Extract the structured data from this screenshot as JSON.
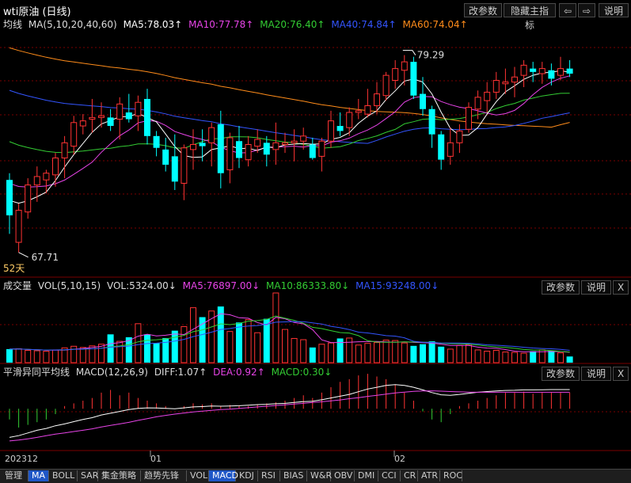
{
  "header": {
    "title": "wti原油 (日线)",
    "buttons": [
      "改参数",
      "隐藏主指标",
      "⇦",
      "⇨",
      "说明"
    ]
  },
  "main_legend": {
    "label": "均线",
    "params": "MA(5,10,20,40,60)",
    "items": [
      {
        "text": "MA5:78.03↑",
        "color": "#ffffff"
      },
      {
        "text": "MA10:77.78↑",
        "color": "#e844e8"
      },
      {
        "text": "MA20:76.40↑",
        "color": "#33cc33"
      },
      {
        "text": "MA40:74.84↑",
        "color": "#3355ff"
      },
      {
        "text": "MA60:74.04↑",
        "color": "#ff8c1a"
      }
    ]
  },
  "vol_legend": {
    "label": "成交量",
    "items": [
      {
        "text": "VOL(5,10,15)",
        "color": "#dddddd"
      },
      {
        "text": "VOL:5324.00↓",
        "color": "#dddddd"
      },
      {
        "text": "MA5:76897.00↓",
        "color": "#e844e8"
      },
      {
        "text": "MA10:86333.80↓",
        "color": "#33cc33"
      },
      {
        "text": "MA15:93248.00↓",
        "color": "#3355ff"
      }
    ],
    "buttons": [
      "改参数",
      "说明",
      "X"
    ]
  },
  "macd_legend": {
    "label": "平滑异同平均线",
    "items": [
      {
        "text": "MACD(12,26,9)",
        "color": "#dddddd"
      },
      {
        "text": "DIFF:1.07↑",
        "color": "#dddddd"
      },
      {
        "text": "DEA:0.92↑",
        "color": "#e844e8"
      },
      {
        "text": "MACD:0.30↓",
        "color": "#33cc33"
      }
    ],
    "buttons": [
      "改参数",
      "说明",
      "X"
    ]
  },
  "annotations": {
    "high_label": "79.29",
    "low_label": "67.71",
    "days_label": "52天"
  },
  "x_axis": [
    "202312",
    "01",
    "02"
  ],
  "tabs": [
    "管理",
    "MA",
    "BOLL",
    "SAR",
    "集金策略",
    "趋势先锋",
    "VOL",
    "MACD",
    "KDJ",
    "RSI",
    "BIAS",
    "W&R",
    "OBV",
    "DMI",
    "CCI",
    "CR",
    "ATR",
    "ROC"
  ],
  "active_tabs": [
    "MA",
    "MACD"
  ],
  "colors": {
    "up": "#ff3333",
    "down": "#00ffff",
    "ma5": "#ffffff",
    "ma10": "#e844e8",
    "ma20": "#33cc33",
    "ma40": "#3355ff",
    "ma60": "#ff8c1a",
    "grid": "#7a0000"
  },
  "chart_data": {
    "type": "candlestick",
    "candles": [
      [
        72.0,
        72.4,
        68.8,
        69.9
      ],
      [
        68.3,
        70.6,
        67.7,
        70.2
      ],
      [
        70.1,
        72.1,
        69.7,
        71.7
      ],
      [
        71.7,
        72.8,
        70.7,
        72.2
      ],
      [
        72.0,
        72.6,
        71.2,
        72.4
      ],
      [
        72.3,
        73.6,
        71.6,
        73.3
      ],
      [
        73.3,
        74.6,
        72.1,
        74.2
      ],
      [
        74.0,
        75.8,
        73.5,
        75.4
      ],
      [
        75.2,
        75.9,
        74.7,
        75.5
      ],
      [
        75.6,
        76.8,
        74.8,
        75.7
      ],
      [
        75.7,
        76.6,
        75.1,
        75.8
      ],
      [
        75.7,
        76.2,
        74.9,
        75.2
      ],
      [
        75.6,
        76.9,
        74.4,
        76.5
      ],
      [
        76.0,
        77.1,
        75.4,
        75.6
      ],
      [
        75.8,
        77.0,
        74.9,
        76.6
      ],
      [
        76.8,
        77.4,
        74.1,
        74.6
      ],
      [
        74.6,
        74.9,
        73.4,
        73.9
      ],
      [
        73.8,
        74.5,
        72.5,
        72.9
      ],
      [
        73.4,
        74.7,
        71.4,
        71.9
      ],
      [
        71.8,
        74.1,
        70.8,
        73.9
      ],
      [
        73.8,
        75.0,
        72.6,
        74.1
      ],
      [
        74.2,
        75.0,
        73.1,
        74.0
      ],
      [
        74.2,
        75.4,
        72.8,
        75.1
      ],
      [
        75.3,
        76.1,
        71.5,
        72.4
      ],
      [
        72.6,
        74.8,
        71.8,
        74.5
      ],
      [
        74.3,
        75.2,
        72.7,
        73.3
      ],
      [
        73.2,
        74.6,
        72.8,
        74.1
      ],
      [
        74.0,
        75.0,
        73.6,
        74.4
      ],
      [
        74.2,
        74.6,
        72.8,
        73.5
      ],
      [
        73.8,
        75.4,
        72.9,
        74.2
      ],
      [
        74.1,
        74.8,
        73.6,
        74.2
      ],
      [
        74.2,
        75.0,
        73.1,
        74.3
      ],
      [
        74.3,
        75.1,
        73.8,
        74.6
      ],
      [
        74.1,
        74.5,
        73.2,
        73.3
      ],
      [
        73.4,
        74.5,
        72.5,
        74.3
      ],
      [
        74.3,
        76.1,
        73.9,
        75.5
      ],
      [
        75.2,
        76.0,
        74.6,
        74.9
      ],
      [
        75.1,
        76.3,
        74.6,
        76.0
      ],
      [
        76.0,
        76.8,
        75.6,
        76.1
      ],
      [
        75.9,
        77.4,
        75.7,
        76.4
      ],
      [
        76.4,
        77.8,
        75.9,
        77.1
      ],
      [
        77.0,
        78.4,
        76.7,
        78.2
      ],
      [
        77.9,
        79.1,
        77.4,
        78.6
      ],
      [
        78.5,
        79.4,
        77.6,
        79.0
      ],
      [
        79.0,
        79.3,
        76.8,
        77.0
      ],
      [
        77.1,
        78.1,
        75.8,
        76.2
      ],
      [
        76.2,
        76.4,
        73.9,
        74.7
      ],
      [
        74.7,
        74.9,
        72.6,
        73.2
      ],
      [
        73.4,
        75.1,
        72.9,
        74.2
      ],
      [
        74.2,
        75.3,
        73.6,
        74.9
      ],
      [
        75.0,
        76.6,
        74.8,
        76.3
      ],
      [
        76.2,
        77.3,
        75.6,
        76.9
      ],
      [
        76.7,
        77.8,
        76.0,
        77.2
      ],
      [
        77.2,
        78.4,
        76.8,
        77.9
      ],
      [
        77.7,
        78.6,
        77.1,
        77.8
      ],
      [
        77.8,
        78.7,
        76.9,
        78.1
      ],
      [
        78.2,
        79.1,
        77.5,
        78.8
      ],
      [
        78.6,
        79.0,
        77.8,
        78.4
      ],
      [
        78.3,
        79.0,
        77.7,
        78.6
      ],
      [
        78.5,
        78.9,
        77.6,
        78.0
      ],
      [
        78.2,
        79.3,
        77.9,
        78.6
      ],
      [
        78.6,
        79.1,
        78.1,
        78.3
      ]
    ],
    "volume": [
      66,
      68,
      60,
      58,
      56,
      62,
      72,
      80,
      74,
      82,
      90,
      138,
      104,
      124,
      190,
      138,
      96,
      120,
      156,
      176,
      268,
      222,
      252,
      274,
      152,
      196,
      210,
      146,
      214,
      340,
      162,
      118,
      112,
      74,
      90,
      96,
      118,
      120,
      86,
      94,
      98,
      110,
      108,
      96,
      82,
      90,
      104,
      78,
      66,
      84,
      88,
      62,
      56,
      60,
      52,
      50,
      46,
      56,
      62,
      58,
      48,
      30
    ],
    "volume_ylim": [
      0,
      340
    ],
    "macd_hist": [
      -0.2,
      -0.35,
      -0.3,
      -0.25,
      -0.2,
      -0.1,
      0.05,
      0.1,
      0.15,
      0.2,
      0.3,
      0.35,
      0.25,
      0.3,
      0.2,
      0.15,
      0.1,
      0.05,
      0.0,
      0.05,
      0.1,
      0.08,
      0.1,
      0.05,
      0.07,
      0.06,
      0.05,
      0.08,
      0.1,
      0.12,
      0.15,
      0.2,
      0.25,
      0.2,
      0.3,
      0.4,
      0.5,
      0.55,
      0.62,
      0.65,
      0.6,
      0.55,
      0.45,
      0.3,
      0.15,
      -0.05,
      -0.2,
      -0.25,
      -0.1,
      0.05,
      0.1,
      0.15,
      0.2,
      0.25,
      0.3,
      0.3,
      0.32,
      0.28,
      0.3,
      0.3,
      0.3,
      0.3
    ],
    "macd_diff": [
      -1.6,
      -1.5,
      -1.35,
      -1.2,
      -1.1,
      -0.95,
      -0.85,
      -0.72,
      -0.6,
      -0.5,
      -0.35,
      -0.25,
      -0.15,
      -0.05,
      0.02,
      0.05,
      0.04,
      0.02,
      0.0,
      0.05,
      0.1,
      0.12,
      0.15,
      0.14,
      0.15,
      0.17,
      0.2,
      0.23,
      0.25,
      0.28,
      0.3,
      0.35,
      0.4,
      0.42,
      0.5,
      0.6,
      0.7,
      0.8,
      0.95,
      1.1,
      1.2,
      1.3,
      1.35,
      1.3,
      1.2,
      1.05,
      0.9,
      0.78,
      0.75,
      0.8,
      0.86,
      0.92,
      0.96,
      0.99,
      1.02,
      1.03,
      1.05,
      1.05,
      1.06,
      1.07,
      1.07,
      1.07
    ],
    "macd_dea": [
      -1.8,
      -1.75,
      -1.68,
      -1.6,
      -1.5,
      -1.42,
      -1.35,
      -1.27,
      -1.2,
      -1.12,
      -1.02,
      -0.93,
      -0.85,
      -0.76,
      -0.65,
      -0.55,
      -0.45,
      -0.37,
      -0.3,
      -0.24,
      -0.18,
      -0.13,
      -0.09,
      -0.05,
      -0.02,
      0.02,
      0.06,
      0.1,
      0.14,
      0.18,
      0.22,
      0.26,
      0.3,
      0.35,
      0.39,
      0.44,
      0.49,
      0.56,
      0.62,
      0.69,
      0.75,
      0.82,
      0.88,
      0.93,
      0.97,
      0.99,
      1.0,
      0.98,
      0.96,
      0.94,
      0.93,
      0.92,
      0.92,
      0.92,
      0.92,
      0.92,
      0.92,
      0.92,
      0.92,
      0.92,
      0.92,
      0.92
    ],
    "macd_ylim": [
      -2.2,
      1.6
    ]
  }
}
